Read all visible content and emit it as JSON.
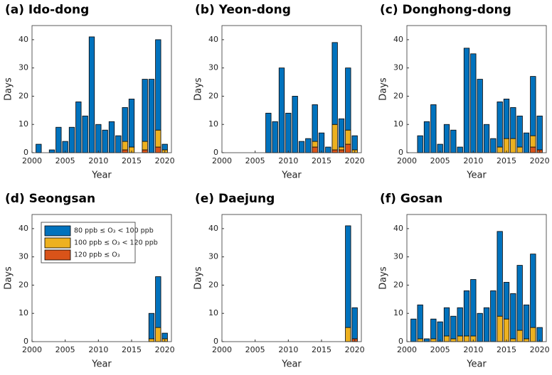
{
  "chart_data": [
    {
      "type": "bar",
      "stacked": true,
      "title": "(a) Ido-dong",
      "xlabel": "Year",
      "ylabel": "Days",
      "x": [
        2001,
        2002,
        2003,
        2004,
        2005,
        2006,
        2007,
        2008,
        2009,
        2010,
        2011,
        2012,
        2013,
        2014,
        2015,
        2016,
        2017,
        2018,
        2019,
        2020
      ],
      "series": [
        {
          "color": "#0072bd",
          "values": [
            3,
            0,
            1,
            9,
            4,
            9,
            18,
            13,
            41,
            10,
            8,
            11,
            6,
            12,
            17,
            0,
            22,
            26,
            32,
            2
          ]
        },
        {
          "color": "#edb120",
          "values": [
            0,
            0,
            0,
            0,
            0,
            0,
            0,
            0,
            0,
            0,
            0,
            0,
            0,
            3,
            2,
            0,
            3,
            0,
            6,
            1
          ]
        },
        {
          "color": "#d95319",
          "values": [
            0,
            0,
            0,
            0,
            0,
            0,
            0,
            0,
            0,
            0,
            0,
            0,
            0,
            1,
            0,
            0,
            1,
            0,
            2,
            0
          ]
        }
      ],
      "xlim": [
        2000,
        2021
      ],
      "ylim": [
        0,
        45
      ],
      "xticks": [
        2000,
        2005,
        2010,
        2015,
        2020
      ],
      "yticks": [
        0,
        10,
        20,
        30,
        40
      ]
    },
    {
      "type": "bar",
      "stacked": true,
      "title": "(b) Yeon-dong",
      "xlabel": "Year",
      "ylabel": "Days",
      "x": [
        2001,
        2002,
        2003,
        2004,
        2005,
        2006,
        2007,
        2008,
        2009,
        2010,
        2011,
        2012,
        2013,
        2014,
        2015,
        2016,
        2017,
        2018,
        2019,
        2020
      ],
      "series": [
        {
          "color": "#0072bd",
          "values": [
            0,
            0,
            0,
            0,
            0,
            0,
            14,
            11,
            30,
            14,
            20,
            4,
            5,
            13,
            7,
            2,
            29,
            10,
            22,
            5
          ]
        },
        {
          "color": "#edb120",
          "values": [
            0,
            0,
            0,
            0,
            0,
            0,
            0,
            0,
            0,
            0,
            0,
            0,
            0,
            2,
            0,
            0,
            9,
            1,
            5,
            1
          ]
        },
        {
          "color": "#d95319",
          "values": [
            0,
            0,
            0,
            0,
            0,
            0,
            0,
            0,
            0,
            0,
            0,
            0,
            0,
            2,
            0,
            0,
            1,
            1,
            3,
            0
          ]
        }
      ],
      "xlim": [
        2000,
        2021
      ],
      "ylim": [
        0,
        45
      ],
      "xticks": [
        2000,
        2005,
        2010,
        2015,
        2020
      ],
      "yticks": [
        0,
        10,
        20,
        30,
        40
      ]
    },
    {
      "type": "bar",
      "stacked": true,
      "title": "(c) Donghong-dong",
      "xlabel": "Year",
      "ylabel": "Days",
      "x": [
        2001,
        2002,
        2003,
        2004,
        2005,
        2006,
        2007,
        2008,
        2009,
        2010,
        2011,
        2012,
        2013,
        2014,
        2015,
        2016,
        2017,
        2018,
        2019,
        2020
      ],
      "series": [
        {
          "color": "#0072bd",
          "values": [
            0,
            6,
            11,
            17,
            3,
            10,
            8,
            2,
            37,
            35,
            26,
            10,
            5,
            16,
            14,
            11,
            11,
            7,
            21,
            12
          ]
        },
        {
          "color": "#edb120",
          "values": [
            0,
            0,
            0,
            0,
            0,
            0,
            0,
            0,
            0,
            0,
            0,
            0,
            0,
            2,
            5,
            5,
            2,
            0,
            4,
            0
          ]
        },
        {
          "color": "#d95319",
          "values": [
            0,
            0,
            0,
            0,
            0,
            0,
            0,
            0,
            0,
            0,
            0,
            0,
            0,
            0,
            0,
            0,
            0,
            0,
            2,
            1
          ]
        }
      ],
      "xlim": [
        2000,
        2021
      ],
      "ylim": [
        0,
        45
      ],
      "xticks": [
        2000,
        2005,
        2010,
        2015,
        2020
      ],
      "yticks": [
        0,
        10,
        20,
        30,
        40
      ]
    },
    {
      "type": "bar",
      "stacked": true,
      "title": "(d) Seongsan",
      "xlabel": "Year",
      "ylabel": "Days",
      "x": [
        2001,
        2002,
        2003,
        2004,
        2005,
        2006,
        2007,
        2008,
        2009,
        2010,
        2011,
        2012,
        2013,
        2014,
        2015,
        2016,
        2017,
        2018,
        2019,
        2020
      ],
      "series": [
        {
          "name": "80 ppb ≤ O₃ < 100 ppb",
          "color": "#0072bd",
          "values": [
            0,
            0,
            0,
            0,
            0,
            0,
            0,
            0,
            0,
            0,
            0,
            0,
            0,
            0,
            0,
            0,
            0,
            9,
            18,
            2
          ]
        },
        {
          "name": "100 ppb ≤ O₃ < 120 ppb",
          "color": "#edb120",
          "values": [
            0,
            0,
            0,
            0,
            0,
            0,
            0,
            0,
            0,
            0,
            0,
            0,
            0,
            0,
            0,
            0,
            0,
            1,
            5,
            1
          ]
        },
        {
          "name": "120 ppb ≤ O₃",
          "color": "#d95319",
          "values": [
            0,
            0,
            0,
            0,
            0,
            0,
            0,
            0,
            0,
            0,
            0,
            0,
            0,
            0,
            0,
            0,
            0,
            0,
            0,
            0
          ]
        }
      ],
      "legend": "upper left",
      "xlim": [
        2000,
        2021
      ],
      "ylim": [
        0,
        45
      ],
      "xticks": [
        2000,
        2005,
        2010,
        2015,
        2020
      ],
      "yticks": [
        0,
        10,
        20,
        30,
        40
      ]
    },
    {
      "type": "bar",
      "stacked": true,
      "title": "(e) Daejung",
      "xlabel": "Year",
      "ylabel": "Days",
      "x": [
        2001,
        2002,
        2003,
        2004,
        2005,
        2006,
        2007,
        2008,
        2009,
        2010,
        2011,
        2012,
        2013,
        2014,
        2015,
        2016,
        2017,
        2018,
        2019,
        2020
      ],
      "series": [
        {
          "color": "#0072bd",
          "values": [
            0,
            0,
            0,
            0,
            0,
            0,
            0,
            0,
            0,
            0,
            0,
            0,
            0,
            0,
            0,
            0,
            0,
            0,
            36,
            11
          ]
        },
        {
          "color": "#edb120",
          "values": [
            0,
            0,
            0,
            0,
            0,
            0,
            0,
            0,
            0,
            0,
            0,
            0,
            0,
            0,
            0,
            0,
            0,
            0,
            5,
            0
          ]
        },
        {
          "color": "#d95319",
          "values": [
            0,
            0,
            0,
            0,
            0,
            0,
            0,
            0,
            0,
            0,
            0,
            0,
            0,
            0,
            0,
            0,
            0,
            0,
            0,
            1
          ]
        }
      ],
      "xlim": [
        2000,
        2021
      ],
      "ylim": [
        0,
        45
      ],
      "xticks": [
        2000,
        2005,
        2010,
        2015,
        2020
      ],
      "yticks": [
        0,
        10,
        20,
        30,
        40
      ]
    },
    {
      "type": "bar",
      "stacked": true,
      "title": "(f) Gosan",
      "xlabel": "Year",
      "ylabel": "Days",
      "x": [
        2001,
        2002,
        2003,
        2004,
        2005,
        2006,
        2007,
        2008,
        2009,
        2010,
        2011,
        2012,
        2013,
        2014,
        2015,
        2016,
        2017,
        2018,
        2019,
        2020
      ],
      "series": [
        {
          "color": "#0072bd",
          "values": [
            8,
            12,
            1,
            7,
            7,
            10,
            8,
            10,
            16,
            20,
            10,
            12,
            18,
            30,
            13,
            16,
            23,
            12,
            26,
            5
          ]
        },
        {
          "color": "#edb120",
          "values": [
            0,
            1,
            0,
            1,
            0,
            2,
            1,
            2,
            2,
            2,
            0,
            0,
            0,
            9,
            8,
            1,
            4,
            1,
            5,
            0
          ]
        },
        {
          "color": "#d95319",
          "values": [
            0,
            0,
            0,
            0,
            0,
            0,
            0,
            0,
            0,
            0,
            0,
            0,
            0,
            0,
            0,
            0,
            0,
            0,
            0,
            0
          ]
        }
      ],
      "xlim": [
        2000,
        2021
      ],
      "ylim": [
        0,
        45
      ],
      "xticks": [
        2000,
        2005,
        2010,
        2015,
        2020
      ],
      "yticks": [
        0,
        10,
        20,
        30,
        40
      ]
    }
  ]
}
